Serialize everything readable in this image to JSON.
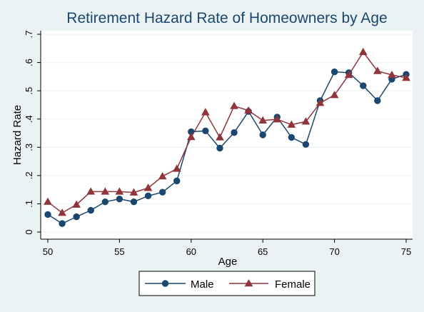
{
  "chart_data": {
    "type": "line",
    "title": "Retirement Hazard Rate of Homeowners by Age",
    "xlabel": "Age",
    "ylabel": "Hazard Rate",
    "xlim": [
      50,
      75
    ],
    "ylim": [
      0,
      0.7
    ],
    "x_ticks": [
      50,
      55,
      60,
      65,
      70,
      75
    ],
    "y_ticks": [
      0,
      0.1,
      0.2,
      0.3,
      0.4,
      0.5,
      0.6,
      0.7
    ],
    "y_tick_labels": [
      "0",
      ".1",
      ".2",
      ".3",
      ".4",
      ".5",
      ".6",
      ".7"
    ],
    "grid": true,
    "legend_position": "bottom",
    "x": [
      50,
      51,
      52,
      53,
      54,
      55,
      56,
      57,
      58,
      59,
      60,
      61,
      62,
      63,
      64,
      65,
      66,
      67,
      68,
      69,
      70,
      71,
      72,
      73,
      74,
      75
    ],
    "series": [
      {
        "name": "Male",
        "color": "#1a476f",
        "marker": "circle",
        "values": [
          0.062,
          0.03,
          0.054,
          0.077,
          0.107,
          0.117,
          0.107,
          0.128,
          0.141,
          0.181,
          0.355,
          0.358,
          0.297,
          0.352,
          0.427,
          0.344,
          0.407,
          0.335,
          0.31,
          0.465,
          0.567,
          0.564,
          0.518,
          0.465,
          0.541,
          0.558
        ]
      },
      {
        "name": "Female",
        "color": "#90353b",
        "marker": "triangle",
        "values": [
          0.107,
          0.068,
          0.097,
          0.143,
          0.143,
          0.143,
          0.14,
          0.156,
          0.197,
          0.224,
          0.336,
          0.424,
          0.335,
          0.446,
          0.43,
          0.395,
          0.399,
          0.38,
          0.391,
          0.457,
          0.485,
          0.556,
          0.637,
          0.57,
          0.556,
          0.546
        ]
      }
    ]
  }
}
